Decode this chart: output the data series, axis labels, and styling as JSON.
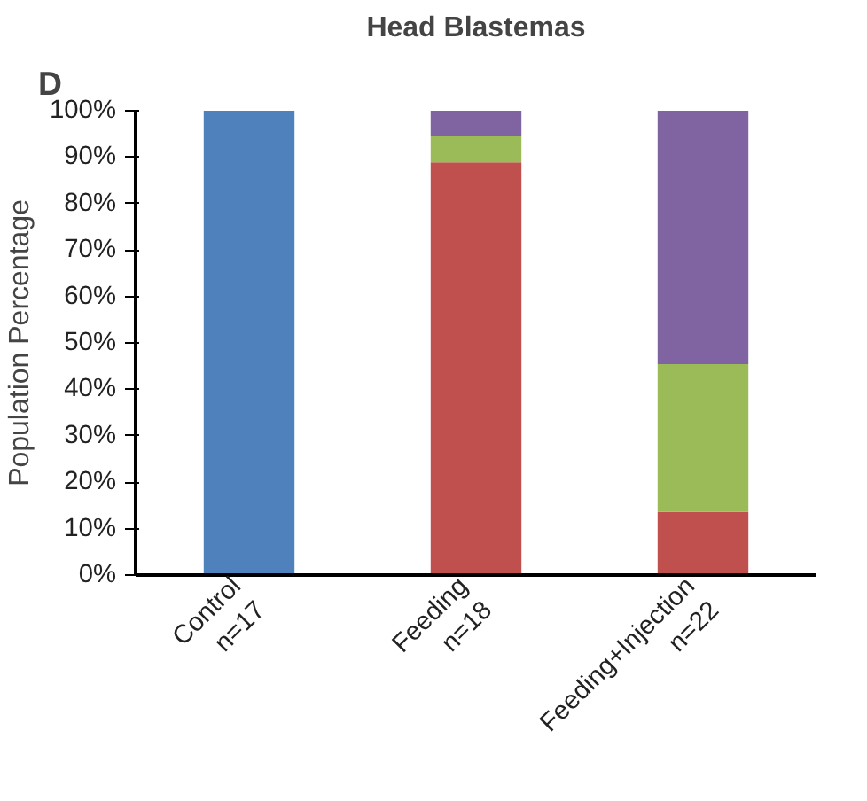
{
  "chart_data": {
    "type": "bar",
    "stacked": true,
    "title": "Head Blastemas",
    "ylabel": "Population Percentage",
    "annotations": [
      "D"
    ],
    "categories": [
      "Control\nn=17",
      "Feeding\nn=18",
      "Feeding+Injection\nn=22"
    ],
    "series": [
      {
        "color": "#4f81bd",
        "values": [
          100,
          null,
          null
        ]
      },
      {
        "color": "#c0504d",
        "values": [
          null,
          88.9,
          13.6
        ]
      },
      {
        "color": "#9bbb59",
        "values": [
          null,
          5.6,
          31.8
        ]
      },
      {
        "color": "#8064a2",
        "values": [
          null,
          5.5,
          54.6
        ]
      }
    ],
    "ylim": [
      0,
      100
    ],
    "yticks": [
      {
        "value": 0,
        "label": "0%"
      },
      {
        "value": 10,
        "label": "10%"
      },
      {
        "value": 20,
        "label": "20%"
      },
      {
        "value": 30,
        "label": "30%"
      },
      {
        "value": 40,
        "label": "40%"
      },
      {
        "value": 50,
        "label": "50%"
      },
      {
        "value": 60,
        "label": "60%"
      },
      {
        "value": 70,
        "label": "70%"
      },
      {
        "value": 80,
        "label": "80%"
      },
      {
        "value": 90,
        "label": "90%"
      },
      {
        "value": 100,
        "label": "100%"
      }
    ],
    "grid": false
  }
}
